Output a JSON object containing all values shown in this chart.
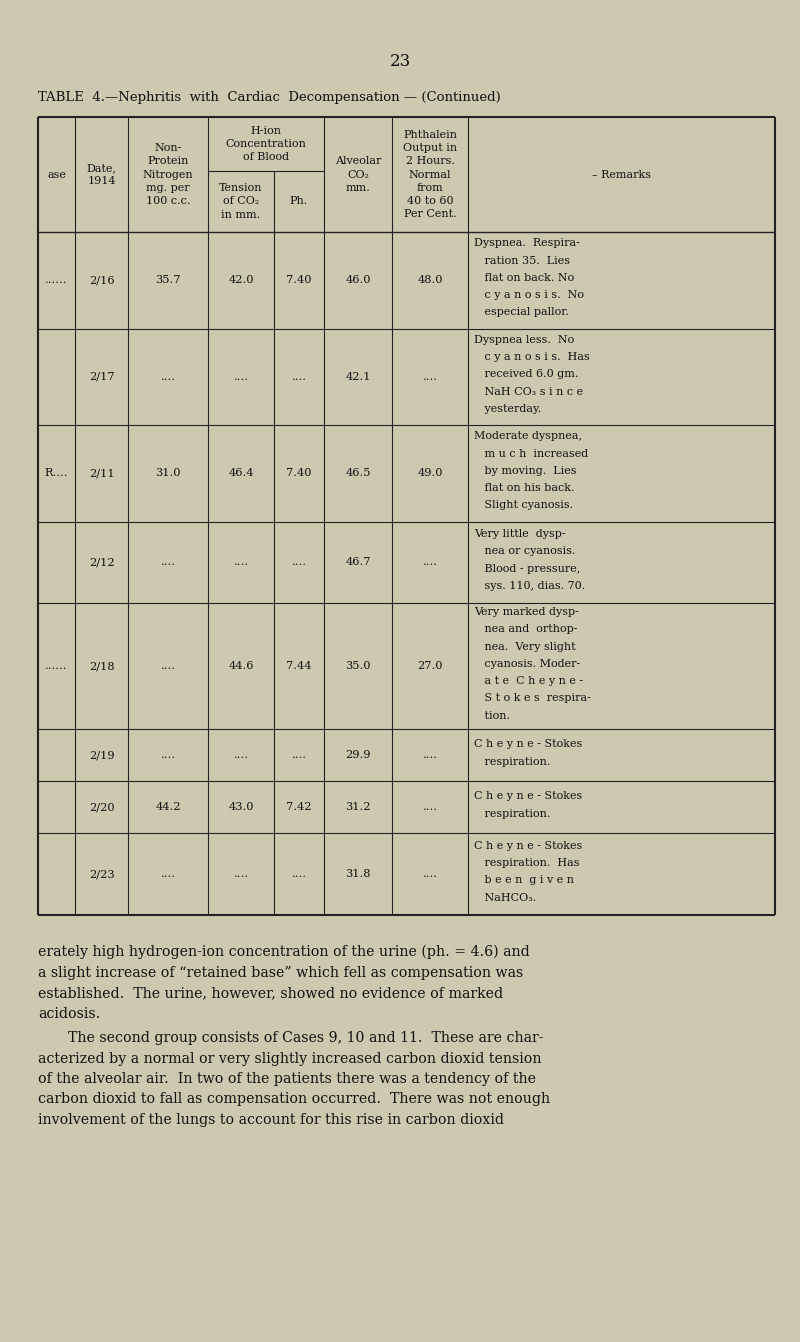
{
  "bg_color": "#ccc9b0",
  "page_num": "23",
  "table_title": "TABLE  4.—Nephritis  with  Cardiac  Decompensation — (Continued)",
  "rows": [
    {
      "case": "......",
      "date": "2/16",
      "npn": "35.7",
      "tension": "42.0",
      "ph": "7.40",
      "alveolar": "46.0",
      "phthalein": "48.0",
      "remarks_lines": [
        "Dyspnea.  Respira-",
        "   ration 35.  Lies",
        "   flat on back. No",
        "   c y a n o s i s.  No",
        "   especial pallor."
      ]
    },
    {
      "case": "",
      "date": "2/17",
      "npn": "....",
      "tension": "....",
      "ph": "....",
      "alveolar": "42.1",
      "phthalein": "....",
      "remarks_lines": [
        "Dyspnea less.  No",
        "   c y a n o s i s.  Has",
        "   received 6.0 gm.",
        "   NaH CO₃ s i n c e",
        "   yesterday."
      ]
    },
    {
      "case": "R....",
      "date": "2/11",
      "npn": "31.0",
      "tension": "46.4",
      "ph": "7.40",
      "alveolar": "46.5",
      "phthalein": "49.0",
      "remarks_lines": [
        "Moderate dyspnea,",
        "   m u c h  increased",
        "   by moving.  Lies",
        "   flat on his back.",
        "   Slight cyanosis."
      ]
    },
    {
      "case": "",
      "date": "2/12",
      "npn": "....",
      "tension": "....",
      "ph": "....",
      "alveolar": "46.7",
      "phthalein": "....",
      "remarks_lines": [
        "Very little  dysp-",
        "   nea or cyanosis.",
        "   Blood - pressure,",
        "   sys. 110, dias. 70."
      ]
    },
    {
      "case": "......",
      "date": "2/18",
      "npn": "....",
      "tension": "44.6",
      "ph": "7.44",
      "alveolar": "35.0",
      "phthalein": "27.0",
      "remarks_lines": [
        "Very marked dysp-",
        "   nea and  orthop-",
        "   nea.  Very slight",
        "   cyanosis. Moder-",
        "   a t e  C h e y n e -",
        "   S t o k e s  respira-",
        "   tion."
      ]
    },
    {
      "case": "",
      "date": "2/19",
      "npn": "....",
      "tension": "....",
      "ph": "....",
      "alveolar": "29.9",
      "phthalein": "....",
      "remarks_lines": [
        "C h e y n e - Stokes",
        "   respiration."
      ]
    },
    {
      "case": "",
      "date": "2/20",
      "npn": "44.2",
      "tension": "43.0",
      "ph": "7.42",
      "alveolar": "31.2",
      "phthalein": "....",
      "remarks_lines": [
        "C h e y n e - Stokes",
        "   respiration."
      ]
    },
    {
      "case": "",
      "date": "2/23",
      "npn": "....",
      "tension": "....",
      "ph": "....",
      "alveolar": "31.8",
      "phthalein": "....",
      "remarks_lines": [
        "C h e y n e - Stokes",
        "   respiration.  Has",
        "   b e e n  g i v e n",
        "   NaHCO₃."
      ]
    }
  ],
  "footer_paragraphs": [
    {
      "indent": false,
      "text": "erately high hydrogen-ion concentration of the urine (ph. = 4.6) and\na slight increase of “retained base” which fell as compensation was\nestablished.  The urine, however, showed no evidence of marked\nacidosis."
    },
    {
      "indent": true,
      "text": "The second group consists of Cases 9, 10 and 11.  These are char-\nacterized by a normal or very slightly increased carbon dioxid tension\nof the alveolar air.  In two of the patients there was a tendency of the\ncarbon dioxid to fall as compensation occurred.  There was not enough\ninvolvement of the lungs to account for this rise in carbon dioxid"
    }
  ]
}
